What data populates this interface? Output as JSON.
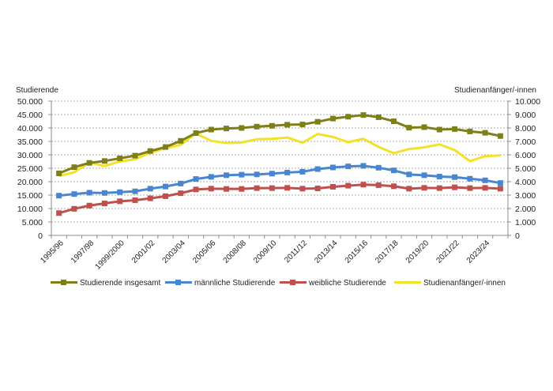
{
  "chart_data": {
    "type": "line",
    "title": "",
    "left_axis": {
      "title": "Studierende",
      "range": [
        0,
        50000
      ],
      "ticks": [
        "0",
        "5.000",
        "10.000",
        "15.000",
        "20.000",
        "25.000",
        "30.000",
        "35.000",
        "40.000",
        "45.000",
        "50.000"
      ]
    },
    "right_axis": {
      "title": "Studienanfänger/-innen",
      "range": [
        0,
        10000
      ],
      "ticks": [
        "0",
        "1.000",
        "2.000",
        "3.000",
        "4.000",
        "5.000",
        "6.000",
        "7.000",
        "8.000",
        "9.000",
        "10.000"
      ]
    },
    "x_tick_labels": [
      "1995/96",
      "",
      "1997/98",
      "",
      "1999/2000",
      "",
      "2001/02",
      "",
      "2003/04",
      "",
      "2005/06",
      "",
      "2008/08",
      "",
      "2009/10",
      "",
      "2011/12",
      "",
      "2013/14",
      "",
      "2015/16",
      "",
      "2017/18",
      "",
      "2019/20",
      "",
      "2021/22",
      "",
      "2023/24",
      ""
    ],
    "grid": "horizontal dashed",
    "legend_position": "bottom",
    "series": [
      {
        "name": "Studierende insgesamt",
        "axis": "left",
        "color": "#7f7f1a",
        "marker": "square",
        "values": [
          23100,
          25400,
          27000,
          27700,
          28700,
          29700,
          31400,
          32900,
          35200,
          38100,
          39400,
          39800,
          40000,
          40500,
          40800,
          41200,
          41300,
          42300,
          43500,
          44200,
          44800,
          44000,
          42500,
          40100,
          40300,
          39400,
          39600,
          38700,
          38200,
          37000
        ]
      },
      {
        "name": "männliche Studierende",
        "axis": "left",
        "color": "#4a86d0",
        "marker": "square",
        "values": [
          14800,
          15400,
          15900,
          15800,
          16100,
          16400,
          17400,
          18200,
          19300,
          21000,
          21800,
          22400,
          22600,
          22700,
          23000,
          23400,
          23700,
          24700,
          25300,
          25700,
          25900,
          25200,
          24200,
          22700,
          22400,
          21900,
          21700,
          21100,
          20500,
          19500
        ]
      },
      {
        "name": "weibliche Studierende",
        "axis": "left",
        "color": "#c0504d",
        "marker": "square",
        "values": [
          8300,
          9900,
          11100,
          11900,
          12700,
          13100,
          13800,
          14600,
          15700,
          17100,
          17400,
          17300,
          17300,
          17600,
          17600,
          17700,
          17400,
          17500,
          18100,
          18500,
          18900,
          18700,
          18300,
          17400,
          17700,
          17600,
          17900,
          17600,
          17700,
          17400
        ]
      },
      {
        "name": "Studienanfänger/-innen",
        "axis": "right",
        "color": "#f2e227",
        "marker": "none",
        "values": [
          4430,
          4690,
          5430,
          5160,
          5510,
          5670,
          6160,
          6490,
          6750,
          7590,
          7040,
          6880,
          6920,
          7160,
          7190,
          7290,
          6900,
          7550,
          7330,
          6940,
          7190,
          6590,
          6120,
          6430,
          6550,
          6780,
          6350,
          5530,
          5900,
          5960
        ]
      }
    ]
  }
}
